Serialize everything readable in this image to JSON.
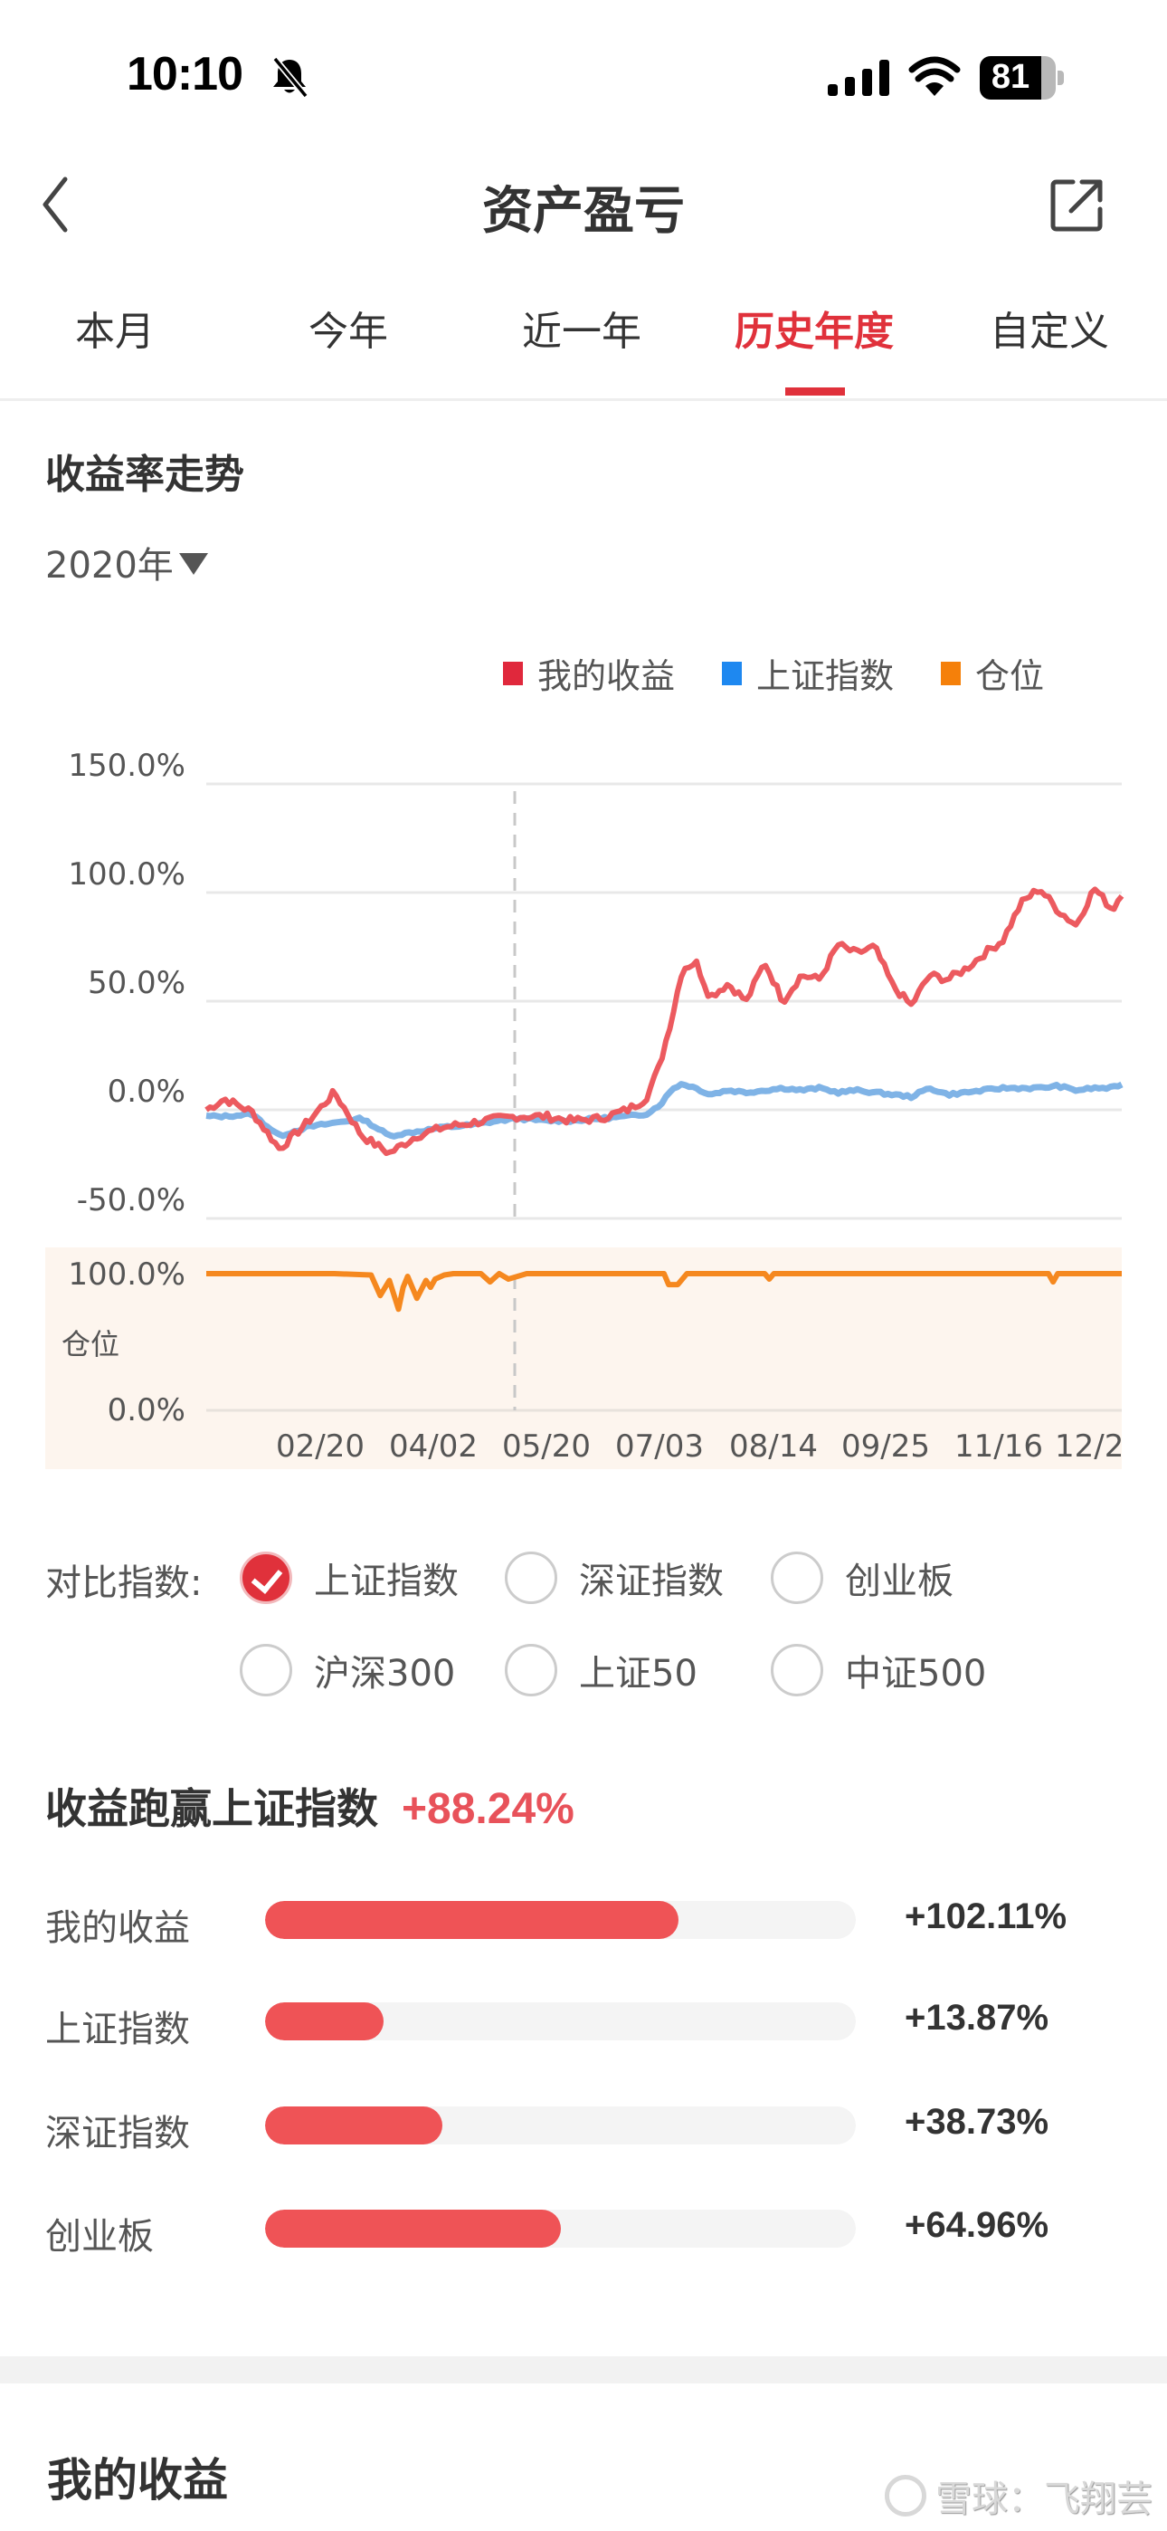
{
  "status_bar": {
    "time": "10:10",
    "silent_icon": "bell-slash-icon",
    "signal_icon": "cellular-signal-icon",
    "wifi_icon": "wifi-icon",
    "battery_percent": "81"
  },
  "nav": {
    "back_icon": "chevron-left-icon",
    "title": "资产盈亏",
    "share_icon": "share-external-icon"
  },
  "tabs": [
    {
      "label": "本月",
      "active": false
    },
    {
      "label": "今年",
      "active": false
    },
    {
      "label": "近一年",
      "active": false
    },
    {
      "label": "历史年度",
      "active": true
    },
    {
      "label": "自定义",
      "active": false
    }
  ],
  "trend": {
    "title": "收益率走势",
    "year_selector": "2020年",
    "legend": [
      {
        "label": "我的收益",
        "color": "#e0283c"
      },
      {
        "label": "上证指数",
        "color": "#1e88f0"
      },
      {
        "label": "仓位",
        "color": "#f5800a"
      }
    ]
  },
  "colors": {
    "accent": "#e0313b",
    "my_return_line": "#ec5a5f",
    "index_line": "#7fb3e6",
    "position_line": "#f5881f",
    "position_panel_bg": "#fdf5ee",
    "bar_fill": "#ef5356",
    "bar_track": "#f4f4f4",
    "outperform_value": "#e8525a"
  },
  "chart_data": [
    {
      "type": "line",
      "title": "收益率走势",
      "subtitle": "2020年",
      "xlabel": "",
      "ylabel": "",
      "ylim": [
        -50,
        150
      ],
      "y_ticks": [
        "150.0%",
        "100.0%",
        "50.0%",
        "0.0%",
        "-50.0%"
      ],
      "x_tick_labels": [
        "02/20",
        "04/02",
        "05/20",
        "07/03",
        "08/14",
        "09/25",
        "11/16",
        "12/2"
      ],
      "grid": true,
      "legend_position": "top-right",
      "crosshair_date_index": 0.34,
      "x": [
        0,
        0.02,
        0.05,
        0.08,
        0.11,
        0.14,
        0.17,
        0.2,
        0.23,
        0.26,
        0.29,
        0.32,
        0.34,
        0.37,
        0.4,
        0.43,
        0.46,
        0.48,
        0.495,
        0.51,
        0.52,
        0.535,
        0.55,
        0.57,
        0.59,
        0.61,
        0.63,
        0.65,
        0.67,
        0.69,
        0.71,
        0.73,
        0.75,
        0.77,
        0.79,
        0.81,
        0.83,
        0.85,
        0.87,
        0.89,
        0.91,
        0.93,
        0.95,
        0.97,
        0.99,
        1.0
      ],
      "series": [
        {
          "name": "我的收益",
          "values": [
            0,
            5,
            -1,
            -18,
            -6,
            8,
            -12,
            -20,
            -12,
            -8,
            -6,
            -4,
            -3,
            -3,
            -5,
            -4,
            0,
            5,
            20,
            45,
            65,
            68,
            52,
            58,
            50,
            68,
            50,
            62,
            60,
            76,
            72,
            75,
            57,
            48,
            62,
            60,
            65,
            72,
            78,
            95,
            102,
            92,
            85,
            102,
            92,
            100
          ]
        },
        {
          "name": "上证指数",
          "values": [
            -3,
            -3,
            -2,
            -12,
            -8,
            -6,
            -4,
            -12,
            -10,
            -8,
            -7,
            -5,
            -4,
            -5,
            -5,
            -4,
            -3,
            -2,
            2,
            10,
            12,
            10,
            7,
            9,
            8,
            9,
            10,
            9,
            10,
            8,
            9,
            8,
            7,
            6,
            10,
            7,
            8,
            9,
            10,
            10,
            10,
            11,
            9,
            10,
            10,
            12
          ]
        }
      ]
    },
    {
      "type": "line",
      "title": "仓位",
      "ylim": [
        0,
        100
      ],
      "y_ticks": [
        "100.0%",
        "0.0%"
      ],
      "x_tick_labels": [
        "02/20",
        "04/02",
        "05/20",
        "07/03",
        "08/14",
        "09/25",
        "11/16",
        "12/2"
      ],
      "grid": true,
      "series": [
        {
          "name": "仓位",
          "x": [
            0,
            0.14,
            0.18,
            0.19,
            0.2,
            0.21,
            0.215,
            0.22,
            0.23,
            0.24,
            0.245,
            0.25,
            0.26,
            0.27,
            0.3,
            0.31,
            0.32,
            0.33,
            0.35,
            0.36,
            0.5,
            0.505,
            0.515,
            0.525,
            0.61,
            0.615,
            0.62,
            0.92,
            0.925,
            0.93,
            1.0
          ],
          "values": [
            100,
            100,
            99,
            84,
            95,
            74,
            90,
            98,
            82,
            95,
            90,
            96,
            99,
            100,
            100,
            94,
            100,
            96,
            100,
            100,
            100,
            92,
            92,
            100,
            100,
            96,
            100,
            100,
            94,
            100,
            100
          ]
        }
      ]
    },
    {
      "type": "bar",
      "title": "收益跑赢上证指数",
      "categories": [
        "我的收益",
        "上证指数",
        "深证指数",
        "创业板"
      ],
      "values": [
        102.11,
        13.87,
        38.73,
        64.96
      ],
      "value_labels": [
        "+102.11%",
        "+13.87%",
        "+38.73%",
        "+64.96%"
      ],
      "orientation": "horizontal"
    }
  ],
  "compare": {
    "label": "对比指数:",
    "options": [
      {
        "label": "上证指数",
        "checked": true
      },
      {
        "label": "深证指数",
        "checked": false
      },
      {
        "label": "创业板",
        "checked": false
      },
      {
        "label": "沪深300",
        "checked": false
      },
      {
        "label": "上证50",
        "checked": false
      },
      {
        "label": "中证500",
        "checked": false
      }
    ]
  },
  "outperform": {
    "title": "收益跑赢上证指数",
    "value": "+88.24%",
    "rows": [
      {
        "label": "我的收益",
        "value": "+102.11%",
        "fill_pct": 70
      },
      {
        "label": "上证指数",
        "value": "+13.87%",
        "fill_pct": 20
      },
      {
        "label": "深证指数",
        "value": "+38.73%",
        "fill_pct": 30
      },
      {
        "label": "创业板",
        "value": "+64.96%",
        "fill_pct": 50
      }
    ]
  },
  "my_earnings": {
    "title": "我的收益"
  },
  "watermark": {
    "text": "雪球：飞翔芸"
  }
}
